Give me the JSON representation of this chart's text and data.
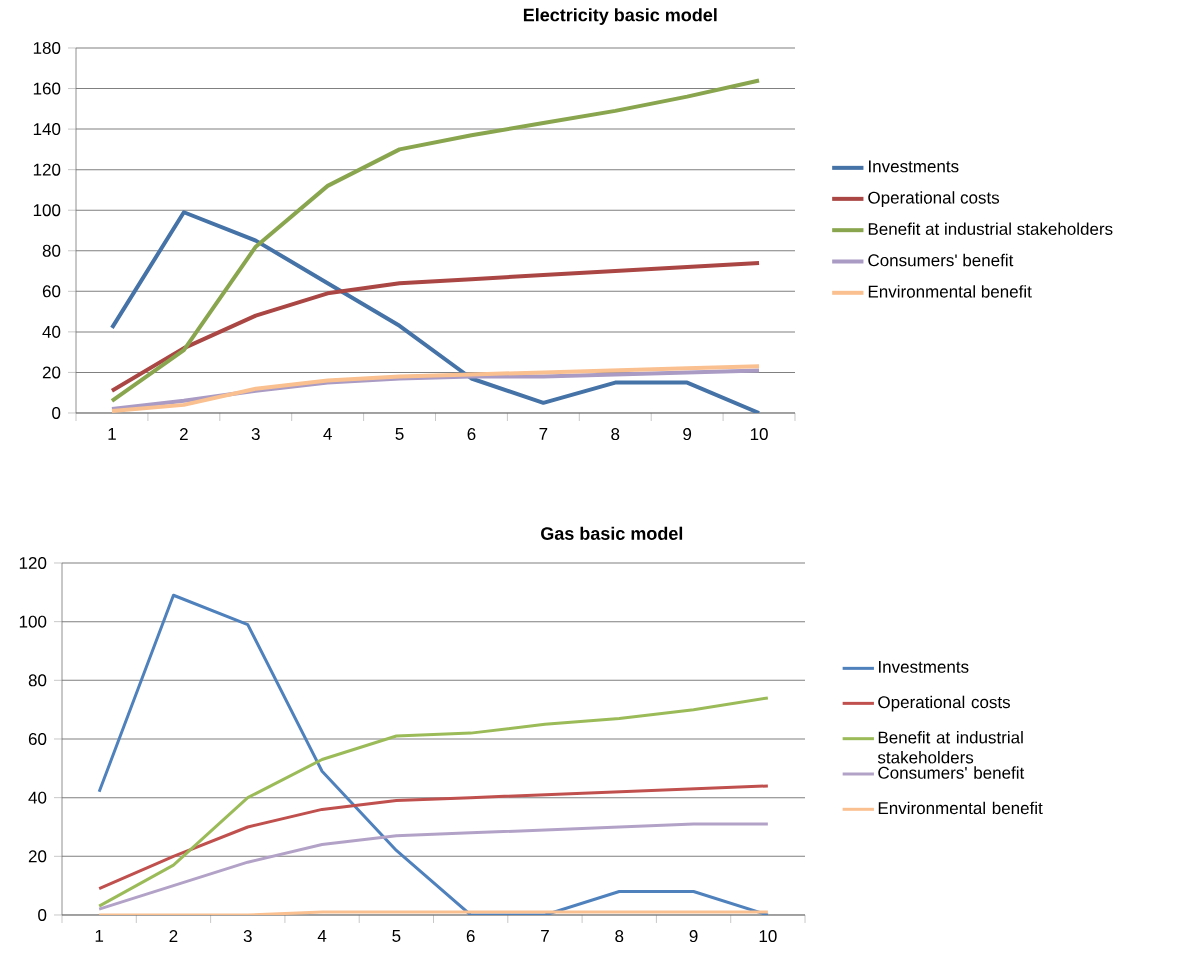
{
  "chart_data": [
    {
      "type": "line",
      "title": "Electricity basic model",
      "categories": [
        "1",
        "2",
        "3",
        "4",
        "5",
        "6",
        "7",
        "8",
        "9",
        "10"
      ],
      "ylim": [
        0,
        180
      ],
      "yticks": [
        0,
        20,
        40,
        60,
        80,
        100,
        120,
        140,
        160,
        180
      ],
      "grid": "y",
      "legend": "right",
      "series": [
        {
          "name": "Investments",
          "color": "#4572a7",
          "values": [
            42,
            99,
            85,
            64,
            43,
            17,
            5,
            15,
            15,
            0
          ]
        },
        {
          "name": "Operational costs",
          "color": "#aa4643",
          "values": [
            11,
            32,
            48,
            59,
            64,
            66,
            68,
            70,
            72,
            74
          ]
        },
        {
          "name": "Benefit at industrial stakeholders",
          "color": "#89a54e",
          "values": [
            6,
            31,
            82,
            112,
            130,
            137,
            143,
            149,
            156,
            164
          ]
        },
        {
          "name": "Consumers' benefit",
          "color": "#a99bc4",
          "values": [
            2,
            6,
            11,
            15,
            17,
            18,
            18,
            19,
            20,
            21
          ]
        },
        {
          "name": "Environmental benefit",
          "color": "#fac090",
          "values": [
            1,
            4,
            12,
            16,
            18,
            19,
            20,
            21,
            22,
            23
          ]
        }
      ]
    },
    {
      "type": "line",
      "title": "Gas basic model",
      "categories": [
        "1",
        "2",
        "3",
        "4",
        "5",
        "6",
        "7",
        "8",
        "9",
        "10"
      ],
      "ylim": [
        0,
        120
      ],
      "yticks": [
        0,
        20,
        40,
        60,
        80,
        100,
        120
      ],
      "grid": "y",
      "legend": "right",
      "series": [
        {
          "name": "Investments",
          "color": "#4f81bd",
          "values": [
            42,
            109,
            99,
            49,
            22,
            0,
            0,
            8,
            8,
            0
          ]
        },
        {
          "name": "Operational costs",
          "color": "#c0504d",
          "values": [
            9,
            20,
            30,
            36,
            39,
            40,
            41,
            42,
            43,
            44
          ]
        },
        {
          "name": "Benefit at industrial stakeholders",
          "color": "#9bbb59",
          "values": [
            3,
            17,
            40,
            53,
            61,
            62,
            65,
            67,
            70,
            74
          ]
        },
        {
          "name": "Consumers' benefit",
          "color": "#b3a2c7",
          "values": [
            2,
            10,
            18,
            24,
            27,
            28,
            29,
            30,
            31,
            31
          ]
        },
        {
          "name": "Environmental benefit",
          "color": "#fac090",
          "values": [
            0,
            0,
            0,
            1,
            1,
            1,
            1,
            1,
            1,
            1
          ]
        }
      ]
    }
  ]
}
